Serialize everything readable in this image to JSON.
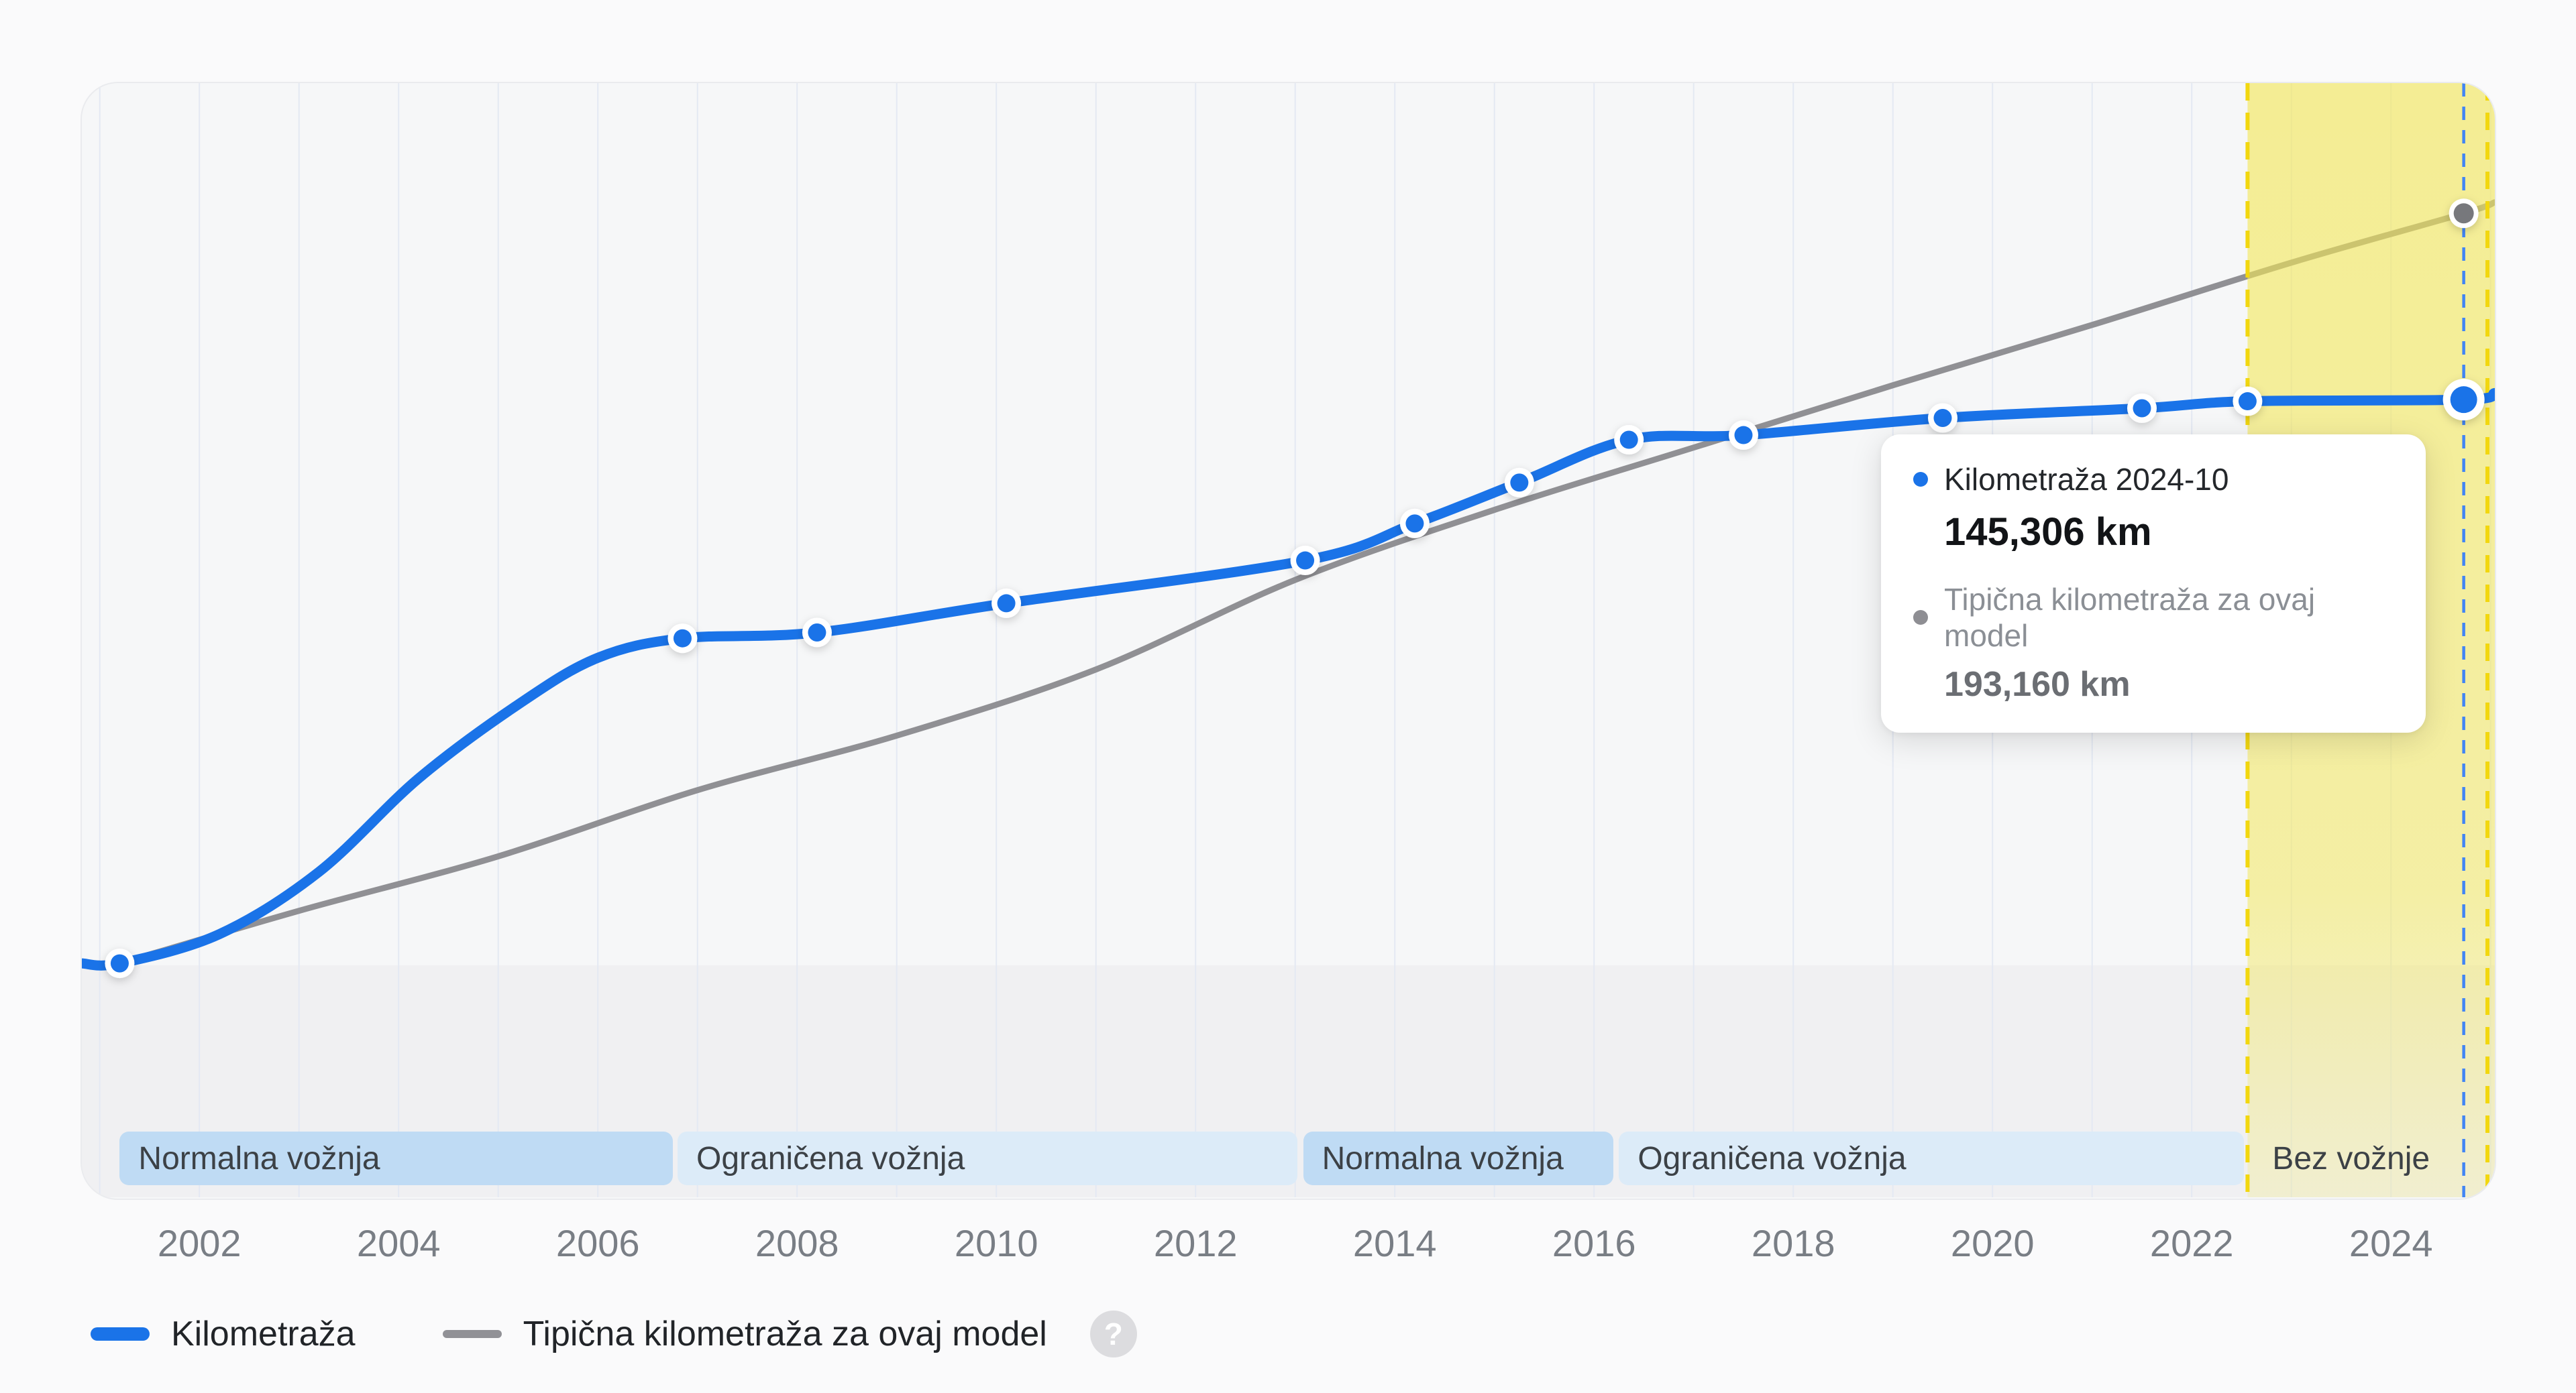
{
  "page": {
    "background": "#fafafb"
  },
  "colors": {
    "mileage_line": "#1a73e8",
    "typical_line": "#909094",
    "current_dashed_line": "#4285f4",
    "highlight_fill": "#f3e756",
    "highlight_dashed_border": "#f2d70f",
    "band_normal": "#bfdbf4",
    "band_limited": "#dcebf8",
    "gridline": "#e4e9f3",
    "below_zero_fill": "#f0f0f2",
    "plot_background": "#f6f7f8"
  },
  "tooltip": {
    "series1_label": "Kilometraža 2024-10",
    "series1_value": "145,306 km",
    "series2_label": "Tipična kilometraža za ovaj model",
    "series2_value": "193,160 km"
  },
  "legend": {
    "items": [
      {
        "label": "Kilometraža"
      },
      {
        "label": "Tipična kilometraža za ovaj model"
      }
    ],
    "help_icon": "?"
  },
  "chart_data": {
    "type": "line",
    "title": "",
    "xlabel": "",
    "ylabel": "",
    "y_unit": "km",
    "axis": {
      "x_domain": [
        2000.82,
        2025.04
      ],
      "y_domain": [
        0,
        226000
      ],
      "grid": "vertical-yearly"
    },
    "x_gridline_years": [
      2001,
      2002,
      2003,
      2004,
      2005,
      2006,
      2007,
      2008,
      2009,
      2010,
      2011,
      2012,
      2013,
      2014,
      2015,
      2016,
      2017,
      2018,
      2019,
      2020,
      2021,
      2022,
      2023,
      2024,
      2025
    ],
    "x_ticks": [
      "2002",
      "2004",
      "2006",
      "2008",
      "2010",
      "2012",
      "2014",
      "2016",
      "2018",
      "2020",
      "2022",
      "2024"
    ],
    "series": [
      {
        "name": "Kilometraža",
        "color": "#1a73e8",
        "points": [
          {
            "year": 2000.82,
            "km": 500,
            "marker": false
          },
          {
            "year": 2001.2,
            "km": 500,
            "marker": true
          },
          {
            "year": 2002.2,
            "km": 8000,
            "marker": false
          },
          {
            "year": 2003.2,
            "km": 24000,
            "marker": false
          },
          {
            "year": 2004.2,
            "km": 48000,
            "marker": false
          },
          {
            "year": 2005.2,
            "km": 67000,
            "marker": false
          },
          {
            "year": 2006.0,
            "km": 79000,
            "marker": false
          },
          {
            "year": 2006.85,
            "km": 84000,
            "marker": true
          },
          {
            "year": 2008.2,
            "km": 85500,
            "marker": true
          },
          {
            "year": 2010.1,
            "km": 93000,
            "marker": true
          },
          {
            "year": 2013.1,
            "km": 104000,
            "marker": true
          },
          {
            "year": 2014.2,
            "km": 113500,
            "marker": true
          },
          {
            "year": 2015.25,
            "km": 124000,
            "marker": true
          },
          {
            "year": 2016.35,
            "km": 135000,
            "marker": true
          },
          {
            "year": 2017.5,
            "km": 136200,
            "marker": true
          },
          {
            "year": 2019.5,
            "km": 140600,
            "marker": true
          },
          {
            "year": 2021.5,
            "km": 143100,
            "marker": true
          },
          {
            "year": 2022.56,
            "km": 144900,
            "marker": true
          },
          {
            "year": 2024.73,
            "km": 145306,
            "marker": true,
            "emphasis": true
          },
          {
            "year": 2025.04,
            "km": 147000,
            "marker": false
          }
        ]
      },
      {
        "name": "Tipična kilometraža za ovaj model",
        "color": "#909094",
        "points": [
          {
            "year": 2001.2,
            "km": 500,
            "marker": false
          },
          {
            "year": 2003.0,
            "km": 14000,
            "marker": false
          },
          {
            "year": 2005.0,
            "km": 28000,
            "marker": false
          },
          {
            "year": 2007.0,
            "km": 45000,
            "marker": false
          },
          {
            "year": 2009.0,
            "km": 59000,
            "marker": false
          },
          {
            "year": 2011.0,
            "km": 76000,
            "marker": false
          },
          {
            "year": 2013.0,
            "km": 99000,
            "marker": false
          },
          {
            "year": 2015.0,
            "km": 117000,
            "marker": false
          },
          {
            "year": 2017.0,
            "km": 133000,
            "marker": false
          },
          {
            "year": 2019.0,
            "km": 149000,
            "marker": false
          },
          {
            "year": 2021.0,
            "km": 164500,
            "marker": false
          },
          {
            "year": 2023.0,
            "km": 180500,
            "marker": false
          },
          {
            "year": 2024.73,
            "km": 193160,
            "marker": true
          },
          {
            "year": 2025.04,
            "km": 196000,
            "marker": false
          }
        ]
      }
    ],
    "periods": [
      {
        "label": "Normalna vožnja",
        "style": "normal",
        "start": 2001.2,
        "end": 2006.78
      },
      {
        "label": "Ograničena vožnja",
        "style": "limited",
        "start": 2006.8,
        "end": 2013.05
      },
      {
        "label": "Normalna vožnja",
        "style": "normal",
        "start": 2013.08,
        "end": 2016.22
      },
      {
        "label": "Ograničena vožnja",
        "style": "limited",
        "start": 2016.25,
        "end": 2022.55
      },
      {
        "label": "Bez vožnje",
        "style": "none",
        "start": 2022.62,
        "end": 2025.0
      }
    ],
    "highlight": {
      "label": "Bez vožnje",
      "start": 2022.56,
      "end": 2025.0,
      "current_year": 2024.73
    },
    "legend_position": "bottom"
  }
}
